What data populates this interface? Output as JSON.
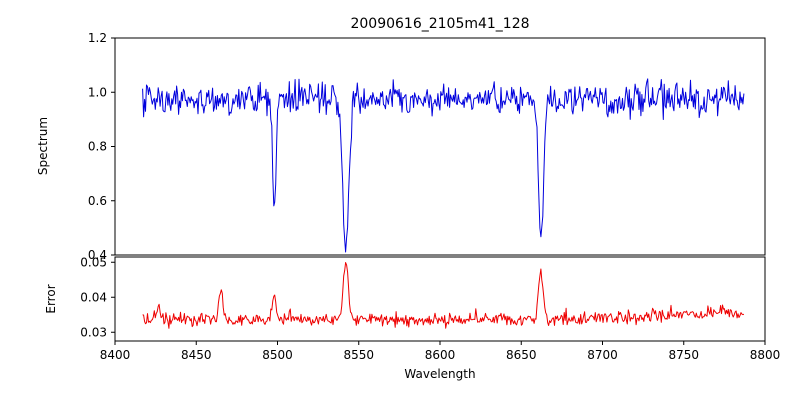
{
  "figure": {
    "title": "20090616_2105m41_128",
    "xlabel": "Wavelength"
  },
  "chart_data": [
    {
      "type": "line",
      "panel": "spectrum",
      "title": "20090616_2105m41_128",
      "ylabel": "Spectrum",
      "series_name": "spectrum",
      "color": "#0000dd",
      "xlim": [
        8400,
        8800
      ],
      "ylim": [
        0.4,
        1.2
      ],
      "yticks": {
        "values": [
          0.4,
          0.6,
          0.8,
          1.0,
          1.2
        ],
        "labels": [
          "0.4",
          "0.6",
          "0.8",
          "1.0",
          "1.2"
        ]
      },
      "x_data_range": [
        8417,
        8787
      ],
      "continuum": 0.975,
      "noise_sigma": 0.027,
      "noise_boost": {
        "from": 8700,
        "factor": 1.3
      },
      "absorption_lines": [
        {
          "center": 8498.0,
          "depth": 0.4,
          "sigma": 1.0
        },
        {
          "center": 8542.1,
          "depth": 0.55,
          "sigma": 1.9
        },
        {
          "center": 8662.1,
          "depth": 0.5,
          "sigma": 1.6
        }
      ]
    },
    {
      "type": "line",
      "panel": "error",
      "ylabel": "Error",
      "xlabel": "Wavelength",
      "series_name": "error",
      "color": "#ee0000",
      "xlim": [
        8400,
        8800
      ],
      "ylim": [
        0.0275,
        0.0515
      ],
      "yticks": {
        "values": [
          0.03,
          0.04,
          0.05
        ],
        "labels": [
          "0.03",
          "0.04",
          "0.05"
        ]
      },
      "x_data_range": [
        8417,
        8787
      ],
      "baseline": 0.0335,
      "noise_sigma": 0.0009,
      "rise": {
        "from": 8680,
        "amount": 0.0025
      },
      "peaks": [
        {
          "center": 8427.0,
          "height": 0.004,
          "sigma": 1.2
        },
        {
          "center": 8465.0,
          "height": 0.008,
          "sigma": 1.1
        },
        {
          "center": 8498.0,
          "height": 0.007,
          "sigma": 1.1
        },
        {
          "center": 8542.1,
          "height": 0.016,
          "sigma": 1.6
        },
        {
          "center": 8662.1,
          "height": 0.013,
          "sigma": 1.5
        }
      ]
    }
  ],
  "xticks": {
    "values": [
      8400,
      8450,
      8500,
      8550,
      8600,
      8650,
      8700,
      8750,
      8800
    ],
    "labels": [
      "8400",
      "8450",
      "8500",
      "8550",
      "8600",
      "8650",
      "8700",
      "8750",
      "8800"
    ]
  },
  "render": {
    "seed": 20090616,
    "n_points": 620
  }
}
